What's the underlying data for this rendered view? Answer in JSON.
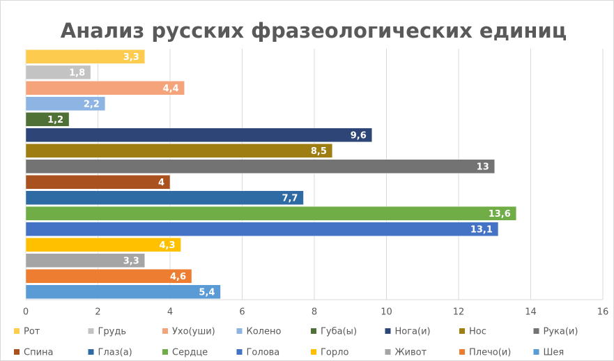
{
  "chart_data": {
    "type": "bar",
    "orientation": "horizontal",
    "title": "Анализ русских фразеологических единиц",
    "xlim": [
      0,
      16
    ],
    "xticks": [
      0,
      2,
      4,
      6,
      8,
      10,
      12,
      14,
      16
    ],
    "grid": true,
    "legend": "bottom",
    "series": [
      {
        "name": "Рот",
        "color": "#fdcc4f",
        "values": [
          3.3
        ],
        "value_labels": [
          "3,3"
        ]
      },
      {
        "name": "Грудь",
        "color": "#c3c3c3",
        "values": [
          1.8
        ],
        "value_labels": [
          "1,8"
        ]
      },
      {
        "name": "Ухо(уши)",
        "color": "#f4a37a",
        "values": [
          4.4
        ],
        "value_labels": [
          "4,4"
        ]
      },
      {
        "name": "Колено",
        "color": "#8db4e2",
        "values": [
          2.2
        ],
        "value_labels": [
          "2,2"
        ]
      },
      {
        "name": "Губа(ы)",
        "color": "#507135",
        "values": [
          1.2
        ],
        "value_labels": [
          "1,2"
        ]
      },
      {
        "name": "Нога(и)",
        "color": "#2e4677",
        "values": [
          9.6
        ],
        "value_labels": [
          "9,6"
        ]
      },
      {
        "name": "Нос",
        "color": "#9e7d12",
        "values": [
          8.5
        ],
        "value_labels": [
          "8,5"
        ]
      },
      {
        "name": "Рука(и)",
        "color": "#737373",
        "values": [
          13
        ],
        "value_labels": [
          "13"
        ]
      },
      {
        "name": "Спина",
        "color": "#a9521f",
        "values": [
          4
        ],
        "value_labels": [
          "4"
        ]
      },
      {
        "name": "Глаз(а)",
        "color": "#2e6aa3",
        "values": [
          7.7
        ],
        "value_labels": [
          "7,7"
        ]
      },
      {
        "name": "Сердце",
        "color": "#70ad47",
        "values": [
          13.6
        ],
        "value_labels": [
          "13,6"
        ]
      },
      {
        "name": "Голова",
        "color": "#4472c4",
        "values": [
          13.1
        ],
        "value_labels": [
          "13,1"
        ]
      },
      {
        "name": "Горло",
        "color": "#ffc000",
        "values": [
          4.3
        ],
        "value_labels": [
          "4,3"
        ]
      },
      {
        "name": "Живот",
        "color": "#a5a5a5",
        "values": [
          3.3
        ],
        "value_labels": [
          "3,3"
        ]
      },
      {
        "name": "Плечо(и)",
        "color": "#ed7d31",
        "values": [
          4.6
        ],
        "value_labels": [
          "4,6"
        ]
      },
      {
        "name": "Шея",
        "color": "#5b9bd5",
        "values": [
          5.4
        ],
        "value_labels": [
          "5,4"
        ]
      }
    ]
  }
}
